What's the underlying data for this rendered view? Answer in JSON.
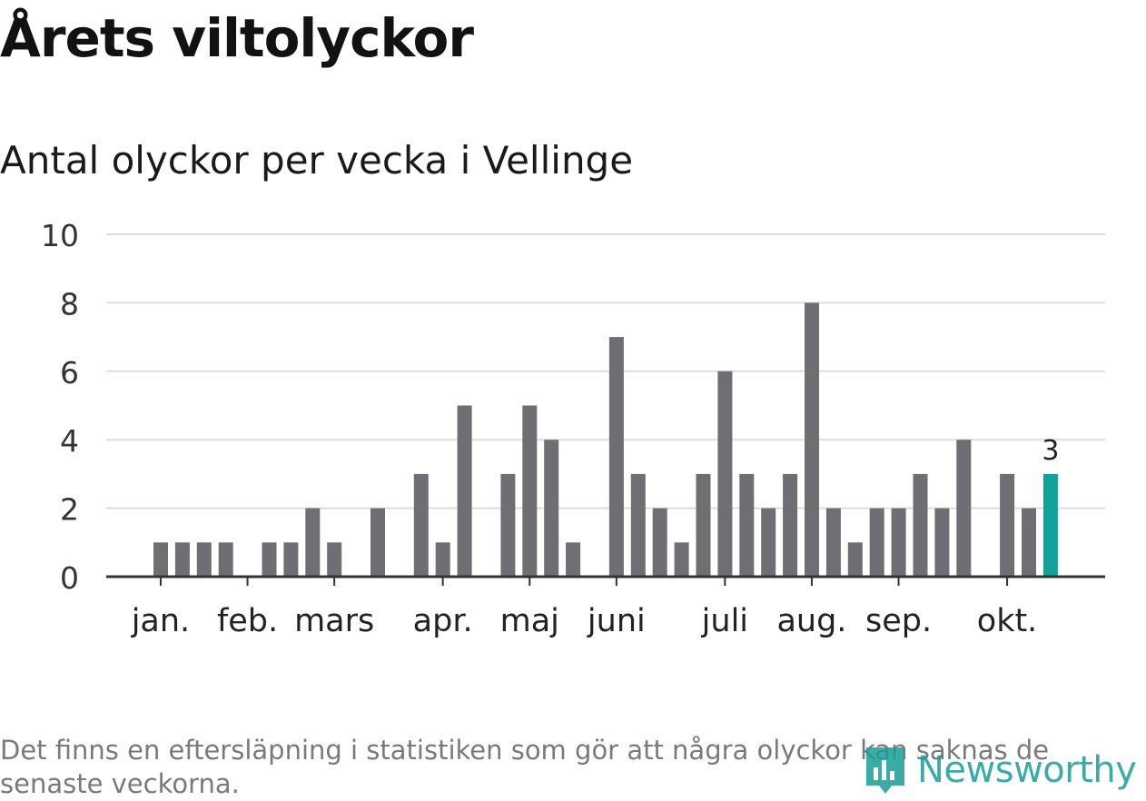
{
  "title": "Årets viltolyckor",
  "subtitle": "Antal olyckor per vecka i Vellinge",
  "note": "Det finns en eftersläpning i statistiken som gör att några olyckor kan saknas de senaste veckorna.",
  "brand": {
    "name": "Newsworthy",
    "color": "#1a9e96"
  },
  "colors": {
    "bar": "#6f6e73",
    "highlight": "#0fa39a",
    "grid": "#dddddd",
    "axis": "#333333"
  },
  "chart_data": {
    "type": "bar",
    "title": "Antal olyckor per vecka i Vellinge",
    "xlabel": "",
    "ylabel": "",
    "ylim": [
      0,
      10
    ],
    "yticks": [
      0,
      2,
      4,
      6,
      8,
      10
    ],
    "weeks": [
      1,
      2,
      3,
      4,
      5,
      6,
      7,
      8,
      9,
      10,
      11,
      12,
      13,
      14,
      15,
      16,
      17,
      18,
      19,
      20,
      21,
      22,
      23,
      24,
      25,
      26,
      27,
      28,
      29,
      30,
      31,
      32,
      33,
      34,
      35,
      36,
      37,
      38,
      39,
      40,
      41,
      42,
      43,
      44,
      45,
      46,
      47,
      48,
      49,
      50,
      51,
      52
    ],
    "values": [
      1,
      1,
      1,
      1,
      0,
      1,
      1,
      2,
      1,
      0,
      2,
      0,
      3,
      1,
      5,
      0,
      3,
      5,
      4,
      1,
      0,
      7,
      3,
      2,
      1,
      3,
      6,
      3,
      2,
      3,
      8,
      2,
      1,
      2,
      2,
      3,
      2,
      4,
      0,
      3,
      2,
      3,
      null,
      null,
      null,
      null,
      null,
      null,
      null,
      null,
      null,
      null
    ],
    "highlight": {
      "week": 42,
      "value": 3,
      "label": "3"
    },
    "month_labels": [
      {
        "label": "jan.",
        "week": 1.5
      },
      {
        "label": "feb.",
        "week": 5.5
      },
      {
        "label": "mars",
        "week": 9.5
      },
      {
        "label": "apr.",
        "week": 14.5
      },
      {
        "label": "maj",
        "week": 18.5
      },
      {
        "label": "juni",
        "week": 22.5
      },
      {
        "label": "juli",
        "week": 27.5
      },
      {
        "label": "aug.",
        "week": 31.5
      },
      {
        "label": "sep.",
        "week": 35.5
      },
      {
        "label": "okt.",
        "week": 40.5
      }
    ]
  }
}
